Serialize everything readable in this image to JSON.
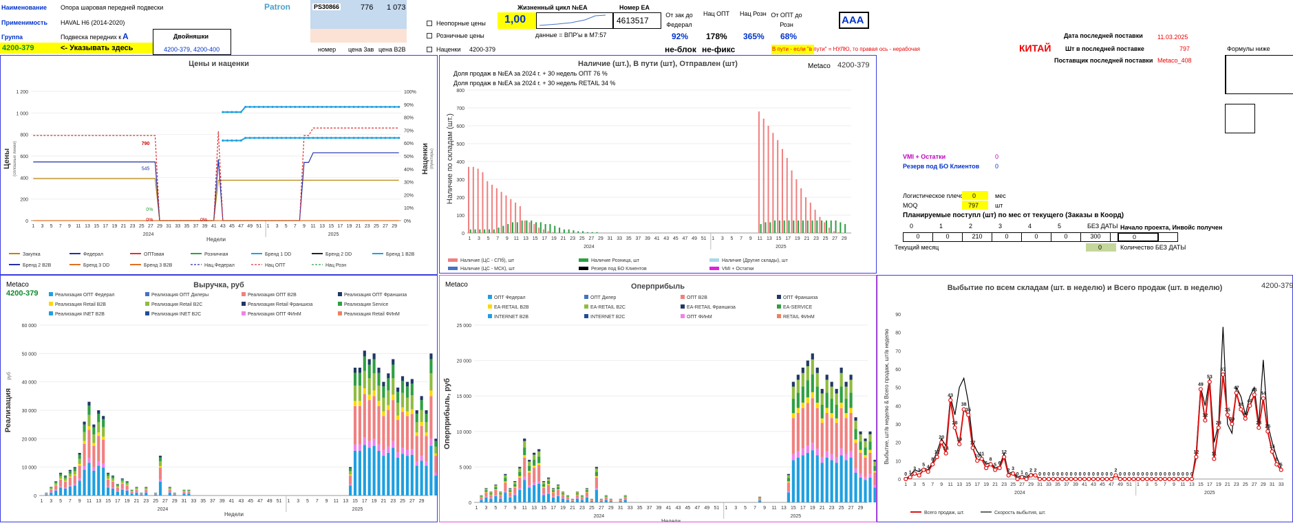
{
  "header": {
    "name_label": "Наименование",
    "name_value": "Опора шаровая передней подвески",
    "apply_label": "Применимость",
    "apply_value": "HAVAL H6 (2014-2020)",
    "group_label": "Группа",
    "group_value": "Подвеска передних к",
    "group_grade": "A",
    "twins_label": "Двойняшки",
    "twins_value": "4200-379, 4200-400",
    "code_value": "4200-379",
    "code_hint": "<- Указывать здесь",
    "brand": "Patron",
    "brand_code": "PS30866",
    "num1": "776",
    "num2": "1 073",
    "cols": [
      "номер",
      "цена 3ав",
      "цена B2B"
    ],
    "cb_nonsupport": "Неопорные цены",
    "cb_retail": "Розничные цены",
    "cb_markups": "Наценки",
    "markup_code": "4200-379",
    "lifecycle_label": "Жизненный цикл №EA",
    "lifecycle_value": "1,00",
    "ea_label": "Номер EA",
    "ea_value": "4613517",
    "vpr_note": "данные = ВПР'ы в M7:57",
    "metrics_labels": [
      "От зак до Федерал",
      "Нац ОПТ",
      "Нац Розн",
      "От ОПТ до Розн"
    ],
    "metrics_values": [
      "92%",
      "178%",
      "365%",
      "68%"
    ],
    "grade_box": "AAA",
    "neblok": "не-блок",
    "nefix": "не-фикс",
    "in_transit_note": "В пути - если \"в пути\" = НУЛЮ, то правая ось - нерабочая",
    "country": "КИТАЙ",
    "last_supply_date_label": "Дата последней поставки",
    "last_supply_date": "11.03.2025",
    "last_supply_qty_label": "Шт в последней поставке",
    "last_supply_qty": "797",
    "last_supplier_label": "Поставщик последней поставки",
    "last_supplier": "Metaco_408",
    "formulas_label": "Формулы ниже"
  },
  "side": {
    "vmi_label": "VMI + Остатки",
    "vmi_value": "0",
    "reserve_label": "Резерв под БО Клиентов",
    "reserve_value": "0",
    "log_label": "Логистическое плечо",
    "log_value": "0",
    "log_unit": "мес",
    "moq_label": "MOQ",
    "moq_value": "797",
    "moq_unit": "шт",
    "planned_title": "Планируемые поступл (шт) по мес от текущего (Заказы в Коорд)",
    "planned_heads": [
      "0",
      "1",
      "2",
      "3",
      "4",
      "5",
      "БЕЗ ДАТЫ"
    ],
    "planned_vals": [
      "0",
      "0",
      "210",
      "0",
      "0",
      "0",
      "300"
    ],
    "project_label": "Начало проекта, Инвойс получен",
    "project_value": "0",
    "current_month": "Текущий месяц",
    "nodate_value": "0",
    "nodate_label": "Количество БЕЗ ДАТЫ"
  },
  "chart_data": [
    {
      "id": "prices",
      "type": "line",
      "title": "Цены и наценки",
      "ylabel": "Цены",
      "ylabel_note": "(сплошные линии)",
      "y2label": "Наценки",
      "y2label_note": "(пунктиры)",
      "xlabel": "Недели",
      "ylim": [
        0,
        1200
      ],
      "y2lim": [
        0,
        1
      ],
      "yticks": [
        "0",
        "200",
        "400",
        "600",
        "800",
        "1 000",
        "1 200"
      ],
      "y2ticks": [
        "0%",
        "10%",
        "20%",
        "30%",
        "40%",
        "50%",
        "60%",
        "70%",
        "80%",
        "90%",
        "100%"
      ],
      "years": [
        "2024",
        "2025"
      ],
      "annotations": [
        "790",
        "545",
        "0%",
        "0%",
        "0%"
      ],
      "legend": [
        "Закупка",
        "Федерал",
        "ОПТовая",
        "Розничная",
        "Бренд 1 DD",
        "Бренд 2 DD",
        "Бренд 1 B2B",
        "Бренд 2 B2B",
        "Бренд 3 DD",
        "Бренд 3 B2B",
        "Нац.Федерал",
        "Нац ОПТ",
        "Нац Розн"
      ]
    },
    {
      "id": "stock",
      "type": "bar",
      "title": "Наличие (шт.), В пути (шт), Отправлен (шт)",
      "subtitle": "Metaco",
      "code": "4200-379",
      "ylabel": "Наличие по складам (шт.)",
      "ylim": [
        0,
        800
      ],
      "yticks": [
        "0",
        "100",
        "200",
        "300",
        "400",
        "500",
        "600",
        "700",
        "800"
      ],
      "notes": [
        "Доля продаж в №EA за 2024 г. + 30 недель ОПТ 76 %",
        "Доля продаж в №EA за 2024 г. + 30 недель RETAIL 34 %"
      ],
      "years": [
        "2024",
        "2025"
      ],
      "legend": [
        "Наличие (ЦС - СПб), шт",
        "Наличие Розница, шт",
        "Наличие (Другие склады), шт",
        "Наличие (ЦС - МСК), шт",
        "Резерв под БО Клиентов",
        "VMI + Остатки"
      ],
      "series": [
        {
          "name": "Наличие (ЦС - СПб), шт",
          "color": "#f08080",
          "values": [
            370,
            370,
            360,
            340,
            290,
            270,
            250,
            230,
            210,
            190,
            170,
            150,
            70,
            60,
            50,
            30,
            20,
            10,
            5,
            0,
            0,
            0,
            0,
            0,
            0,
            0,
            0,
            0,
            0,
            0,
            0,
            0,
            0,
            0,
            0,
            0,
            0,
            0,
            0,
            0,
            0,
            0,
            0,
            0,
            0,
            0,
            0,
            0,
            0,
            0,
            0,
            0,
            0,
            0,
            0,
            0,
            0,
            0,
            0,
            0,
            0,
            0,
            680,
            640,
            600,
            560,
            520,
            470,
            420,
            350,
            300,
            250,
            200,
            170,
            130,
            90,
            60,
            30,
            10,
            5,
            0
          ]
        },
        {
          "name": "Наличие Розница, шт",
          "color": "#2ea043",
          "values": [
            20,
            20,
            20,
            20,
            20,
            20,
            30,
            40,
            50,
            60,
            60,
            70,
            70,
            70,
            60,
            60,
            50,
            50,
            40,
            30,
            20,
            20,
            15,
            10,
            10,
            5,
            5,
            5,
            0,
            0,
            0,
            0,
            0,
            0,
            0,
            0,
            0,
            0,
            0,
            0,
            0,
            0,
            0,
            0,
            0,
            0,
            0,
            0,
            0,
            0,
            0,
            0,
            0,
            0,
            0,
            0,
            0,
            0,
            0,
            0,
            0,
            0,
            50,
            60,
            60,
            70,
            70,
            70,
            70,
            70,
            70,
            70,
            70,
            70,
            70,
            70,
            70,
            70,
            70,
            60,
            50
          ]
        }
      ]
    },
    {
      "id": "revenue",
      "type": "bar",
      "title": "Выручка, руб",
      "subtitle": "Metaco",
      "code": "4200-379",
      "ylabel": "Реализация",
      "ylabel_note": "руб",
      "xlabel": "Недели",
      "ylim": [
        0,
        60000
      ],
      "yticks": [
        "0",
        "10 000",
        "20 000",
        "30 000",
        "40 000",
        "50 000",
        "60 000"
      ],
      "years": [
        "2024",
        "2025"
      ],
      "legend": [
        "Реализация ОПТ Федерал",
        "Реализация ОПТ Дилеры",
        "Реализация ОПТ B2B",
        "Реализация ОПТ Франшиза",
        "Реализация Retail B2B",
        "Реализация Retail B2C",
        "Реализация Retail Франшиза",
        "Реализация Service",
        "Реализация INET B2B",
        "Реализация INET B2C",
        "Реализация ОПТ ФИнМ",
        "Реализация Retail ФИнМ"
      ],
      "values": [
        0,
        1000,
        3000,
        5000,
        8000,
        7000,
        9000,
        10000,
        15000,
        26000,
        33000,
        25000,
        30000,
        28000,
        8000,
        7000,
        4000,
        6000,
        5000,
        2000,
        3000,
        1000,
        3000,
        0,
        1000,
        14000,
        0,
        3000,
        1000,
        0,
        2000,
        2000,
        0,
        0,
        0,
        0,
        0,
        0,
        0,
        0,
        0,
        0,
        0,
        0,
        0,
        0,
        0,
        0,
        0,
        0,
        0,
        0,
        0,
        0,
        0,
        0,
        0,
        0,
        0,
        0,
        0,
        0,
        0,
        0,
        0,
        10000,
        45000,
        45000,
        51000,
        48000,
        50000,
        45000,
        40000,
        43000,
        48000,
        38000,
        42000,
        40000,
        41000,
        30000,
        35000,
        30000,
        50000,
        20000,
        15000,
        10000,
        9000,
        8000,
        6000
      ]
    },
    {
      "id": "margin",
      "type": "bar",
      "title": "Оперприбыль",
      "subtitle": "Metaco",
      "ylabel": "Оперприбыль, руб",
      "xlabel": "Недели",
      "ylim": [
        0,
        25000
      ],
      "yticks": [
        "0",
        "5 000",
        "10 000",
        "15 000",
        "20 000",
        "25 000"
      ],
      "years": [
        "2024",
        "2025"
      ],
      "legend": [
        "ОПТ Федерал",
        "ОПТ Дилер",
        "ОПТ B2B",
        "ОПТ Франшиза",
        "EA-RETAIL B2B",
        "EA-RETAIL B2C",
        "EA-RETAIL Франшиза",
        "EA-SERVICE",
        "INTERNET B2B",
        "INTERNET B2C",
        "ОПТ ФИнМ",
        "RETAIL ФИнМ"
      ],
      "values": [
        0,
        1000,
        2000,
        1500,
        2500,
        1500,
        4000,
        2000,
        3000,
        5000,
        9000,
        6000,
        7000,
        7500,
        3000,
        3500,
        2000,
        2500,
        1500,
        1000,
        500,
        1500,
        1000,
        2000,
        500,
        5000,
        500,
        1000,
        500,
        0,
        500,
        1000,
        0,
        0,
        0,
        0,
        0,
        0,
        0,
        0,
        0,
        0,
        0,
        0,
        0,
        0,
        0,
        0,
        0,
        0,
        0,
        0,
        0,
        0,
        0,
        0,
        0,
        0,
        0,
        800,
        0,
        0,
        0,
        0,
        0,
        4000,
        17000,
        18000,
        19000,
        20000,
        21000,
        19000,
        16000,
        18000,
        17000,
        16000,
        19000,
        17000,
        18000,
        12000,
        10000,
        9000,
        10000,
        6000,
        4000,
        3000,
        2500,
        2000,
        1500
      ]
    },
    {
      "id": "outflow",
      "type": "line",
      "title": "Выбытие по всем складам (шт. в неделю) и Всего продаж (шт. в неделю)",
      "code": "4200-379",
      "ylabel": "Выбытие, шт/в неделю & Всего продаж, шт/в неделю",
      "ylim": [
        0,
        90
      ],
      "yticks": [
        "0",
        "10",
        "20",
        "30",
        "40",
        "50",
        "60",
        "70",
        "80",
        "90"
      ],
      "years": [
        "2024",
        "2025"
      ],
      "legend": [
        "Всего продаж, шт.",
        "Скорость выбытия, шт."
      ],
      "series": [
        {
          "name": "Всего продаж, шт.",
          "color": "#d11",
          "values": [
            0,
            1,
            3,
            2,
            5,
            4,
            8,
            12,
            20,
            14,
            43,
            28,
            19,
            38,
            35,
            17,
            10,
            11,
            6,
            8,
            5,
            6,
            12,
            2,
            3,
            0,
            1,
            0,
            2,
            2,
            0,
            0,
            0,
            0,
            0,
            0,
            0,
            0,
            0,
            0,
            0,
            0,
            0,
            0,
            0,
            0,
            0,
            2,
            0,
            0,
            0,
            0,
            0,
            0,
            0,
            0,
            0,
            0,
            0,
            0,
            0,
            0,
            0,
            0,
            0,
            12,
            49,
            32,
            53,
            11,
            28,
            57,
            35,
            30,
            47,
            38,
            33,
            40,
            46,
            28,
            44,
            26,
            15,
            8,
            5
          ]
        },
        {
          "name": "Скорость выбытия, шт.",
          "color": "#000",
          "values": [
            0,
            2,
            5,
            4,
            6,
            5,
            9,
            15,
            22,
            18,
            45,
            35,
            50,
            55,
            42,
            20,
            15,
            12,
            8,
            9,
            6,
            7,
            14,
            3,
            4,
            1,
            2,
            1,
            3,
            2,
            0,
            0,
            0,
            0,
            0,
            0,
            0,
            0,
            0,
            0,
            0,
            0,
            0,
            0,
            0,
            0,
            0,
            2,
            0,
            0,
            0,
            0,
            0,
            0,
            0,
            0,
            0,
            0,
            0,
            0,
            0,
            0,
            0,
            0,
            0,
            15,
            50,
            40,
            55,
            20,
            30,
            83,
            30,
            25,
            50,
            45,
            35,
            45,
            50,
            30,
            65,
            30,
            20,
            12,
            6
          ]
        }
      ]
    }
  ]
}
